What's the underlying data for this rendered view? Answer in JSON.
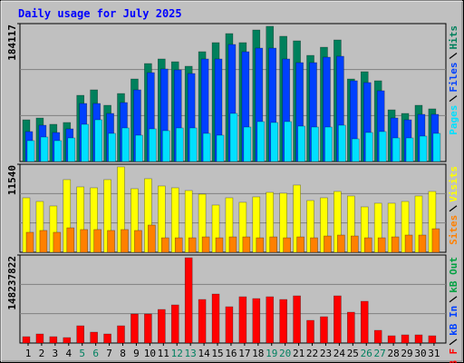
{
  "chart_data": {
    "type": "bar",
    "title": "Daily usage for July 2025",
    "categories": [
      "1",
      "2",
      "3",
      "4",
      "5",
      "6",
      "7",
      "8",
      "9",
      "10",
      "11",
      "12",
      "13",
      "14",
      "15",
      "16",
      "17",
      "18",
      "19",
      "20",
      "21",
      "22",
      "23",
      "24",
      "25",
      "26",
      "27",
      "28",
      "29",
      "30",
      "31"
    ],
    "category_label_colors": [
      "#000000",
      "#000000",
      "#000000",
      "#000000",
      "#008060",
      "#008060",
      "#000000",
      "#000000",
      "#000000",
      "#000000",
      "#000000",
      "#008060",
      "#008060",
      "#000000",
      "#000000",
      "#000000",
      "#000000",
      "#000000",
      "#008060",
      "#008060",
      "#000000",
      "#000000",
      "#000000",
      "#000000",
      "#000000",
      "#008060",
      "#008060",
      "#000000",
      "#000000",
      "#000000",
      "#000000"
    ],
    "grid": true,
    "panels": [
      {
        "ylim": [
          0,
          184117
        ],
        "yticks": [
          184117
        ],
        "series": [
          {
            "name": "Pages",
            "color": "#00e0ff",
            "values": [
              27860,
              32700,
              27860,
              31490,
              49660,
              55720,
              37550,
              44820,
              35130,
              43610,
              41180,
              44820,
              44820,
              37550,
              35130,
              64200,
              46030,
              53300,
              52090,
              53300,
              47240,
              46030,
              46030,
              48450,
              30280,
              38760,
              39970,
              31490,
              31490,
              33920,
              37550
            ]
          },
          {
            "name": "Files",
            "color": "#0040ff",
            "values": [
              40000,
              48450,
              38760,
              43610,
              77520,
              77520,
              64200,
              78730,
              95690,
              118710,
              123550,
              122340,
              117500,
              136880,
              136880,
              156260,
              146570,
              151410,
              151410,
              136880,
              132030,
              132030,
              139300,
              140510,
              107810,
              105380,
              94480,
              58140,
              55720,
              62990,
              62990
            ]
          },
          {
            "name": "Hits",
            "color": "#00805c",
            "values": [
              55700,
              58100,
              49700,
              52100,
              88400,
              95700,
              75100,
              90800,
              110200,
              130800,
              136900,
              133200,
              127200,
              146600,
              158700,
              170800,
              158700,
              175600,
              180500,
              167200,
              161100,
              141700,
              152600,
              162300,
              110200,
              119900,
              107800,
              69000,
              64200,
              75100,
              70300
            ]
          }
        ]
      },
      {
        "ylim": [
          0,
          11540
        ],
        "yticks": [
          11540
        ],
        "series": [
          {
            "name": "Sites",
            "color": "#ff8000",
            "values": [
              2620,
              2860,
              2620,
              3210,
              2980,
              2980,
              2860,
              2980,
              2860,
              3570,
              1900,
              1900,
              1900,
              2020,
              1900,
              2020,
              2020,
              1900,
              2020,
              1900,
              2020,
              1900,
              2140,
              2260,
              2140,
              1900,
              1900,
              2020,
              2260,
              2260,
              3090
            ]
          },
          {
            "name": "Visits",
            "color": "#ffff00",
            "values": [
              7140,
              6660,
              6070,
              9520,
              8570,
              8450,
              9520,
              11190,
              8330,
              9640,
              8690,
              8450,
              8090,
              7620,
              6190,
              7140,
              6550,
              7260,
              7850,
              7740,
              8810,
              6780,
              7140,
              7970,
              7380,
              5950,
              6430,
              6430,
              6660,
              7380,
              7970
            ]
          }
        ]
      },
      {
        "ylim": [
          0,
          148237822
        ],
        "yticks": [
          148237822
        ],
        "series": [
          {
            "name": "kB F",
            "color": "#ff0000",
            "values": [
              10700000,
              15280000,
              10700000,
              9170000,
              29040000,
              18340000,
              15280000,
              29040000,
              48900000,
              48900000,
              56540000,
              64190000,
              143650000,
              73350000,
              82520000,
              61130000,
              77940000,
              74880000,
              77940000,
              73350000,
              79470000,
              38210000,
              44320000,
              79470000,
              51960000,
              70300000,
              21390000,
              12230000,
              13750000,
              13750000,
              12230000
            ]
          },
          {
            "name": "kB In",
            "color": "#0040ff",
            "values": [
              0,
              0,
              0,
              0,
              0,
              0,
              0,
              0,
              0,
              0,
              0,
              0,
              0,
              0,
              0,
              0,
              0,
              0,
              0,
              0,
              0,
              0,
              0,
              0,
              0,
              0,
              0,
              0,
              0,
              0,
              0
            ]
          },
          {
            "name": "kB Out",
            "color": "#00a040",
            "values": [
              0,
              0,
              0,
              0,
              0,
              0,
              0,
              0,
              0,
              0,
              0,
              0,
              0,
              0,
              0,
              0,
              0,
              0,
              0,
              0,
              0,
              0,
              0,
              0,
              0,
              0,
              0,
              0,
              0,
              0,
              0
            ]
          }
        ]
      }
    ]
  }
}
